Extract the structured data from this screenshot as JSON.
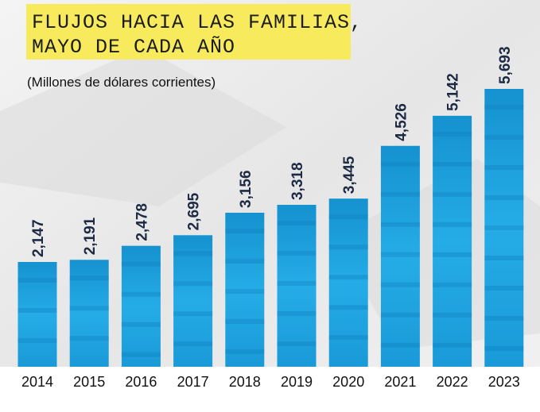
{
  "chart_data": {
    "type": "bar",
    "title": [
      "FLUJOS HACIA LAS FAMILIAS,",
      "MAYO DE CADA AÑO"
    ],
    "subtitle": "(Millones de dólares corrientes)",
    "categories": [
      "2014",
      "2015",
      "2016",
      "2017",
      "2018",
      "2019",
      "2020",
      "2021",
      "2022",
      "2023"
    ],
    "values": [
      2147,
      2191,
      2478,
      2695,
      3156,
      3318,
      3445,
      4526,
      5142,
      5693
    ],
    "value_labels": [
      "2,147",
      "2,191",
      "2,478",
      "2,695",
      "3,156",
      "3,318",
      "3,445",
      "4,526",
      "5,142",
      "5,693"
    ],
    "color": "#1ea6e3"
  }
}
